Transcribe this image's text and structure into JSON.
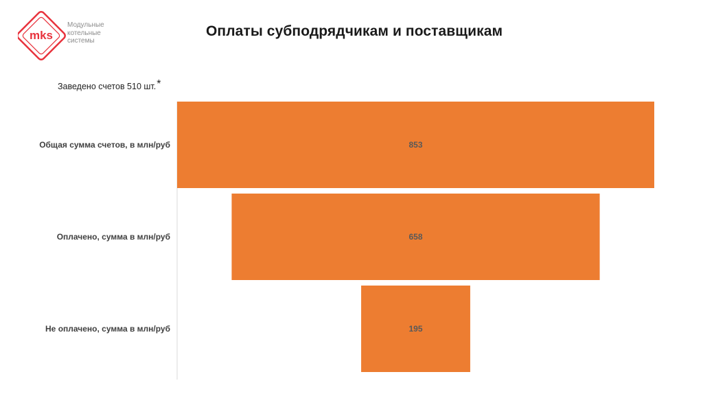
{
  "logo": {
    "mark": "mks",
    "tagline": [
      "Модульные",
      "котельные",
      "системы"
    ],
    "color": "#e8323c"
  },
  "title": "Оплаты субподрядчикам и поставщикам",
  "subtitle": "Заведено счетов 510 шт.",
  "subtitle_mark": "*",
  "chart_data": {
    "type": "bar",
    "orientation": "horizontal-centered",
    "categories": [
      "Общая сумма счетов, в млн/руб",
      "Оплачено, сумма в млн/руб",
      "Не оплачено, сумма в млн/руб"
    ],
    "values": [
      853,
      658,
      195
    ],
    "xlim": [
      0,
      853
    ],
    "bar_color": "#ed7d31",
    "grid": false,
    "legend": "none"
  }
}
